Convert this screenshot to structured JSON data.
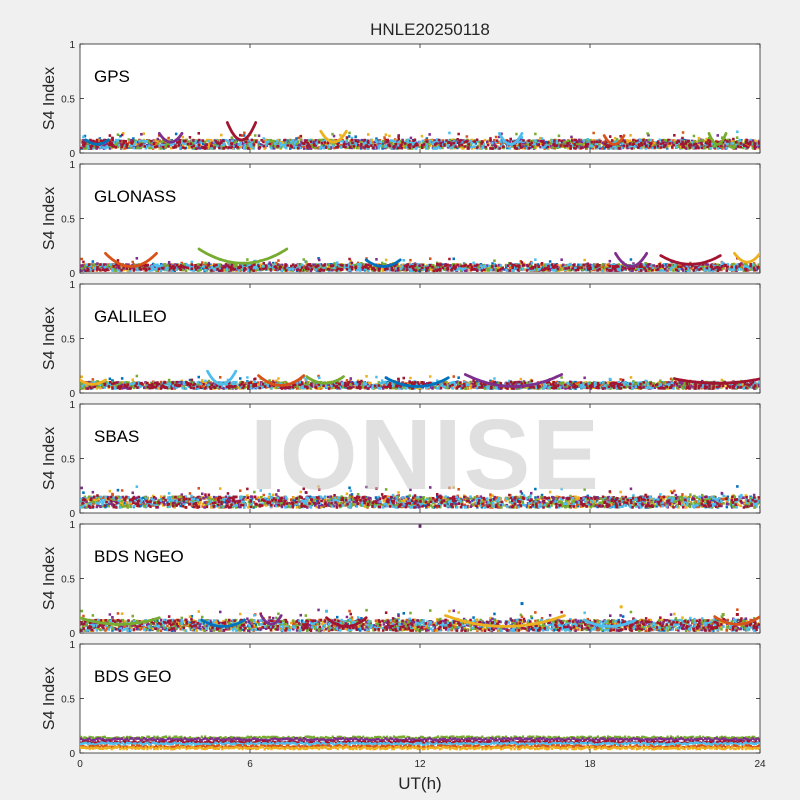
{
  "title": "HNLE20250118",
  "watermark": "IONISE",
  "chart_data": {
    "type": "scatter",
    "title": "HNLE20250118",
    "xlabel": "UT(h)",
    "ylabel": "S4 Index",
    "xlim": [
      0,
      24
    ],
    "ylim": [
      0,
      1
    ],
    "xticks": [
      0,
      6,
      12,
      18,
      24
    ],
    "yticks": [
      0,
      0.5,
      1
    ],
    "grid": false,
    "panels": [
      {
        "name": "GPS",
        "baseline": 0.08,
        "spread": 0.04,
        "arcs": [
          [
            0.2,
            1.0,
            0.12,
            0.08
          ],
          [
            2.8,
            3.6,
            0.18,
            0.1
          ],
          [
            5.2,
            6.2,
            0.28,
            0.12
          ],
          [
            8.5,
            9.4,
            0.2,
            0.1
          ],
          [
            14.8,
            15.6,
            0.18,
            0.08
          ],
          [
            18.5,
            19.2,
            0.16,
            0.08
          ],
          [
            22.2,
            22.8,
            0.18,
            0.08
          ]
        ]
      },
      {
        "name": "GLONASS",
        "baseline": 0.05,
        "spread": 0.03,
        "arcs": [
          [
            0.9,
            2.7,
            0.18,
            0.06
          ],
          [
            4.2,
            7.3,
            0.22,
            0.09
          ],
          [
            10.1,
            11.3,
            0.12,
            0.06
          ],
          [
            18.9,
            20.0,
            0.18,
            0.06
          ],
          [
            20.5,
            22.6,
            0.16,
            0.08
          ],
          [
            23.1,
            24.0,
            0.18,
            0.1
          ]
        ]
      },
      {
        "name": "GALILEO",
        "baseline": 0.07,
        "spread": 0.03,
        "arcs": [
          [
            0.0,
            0.9,
            0.12,
            0.08
          ],
          [
            4.5,
            5.5,
            0.2,
            0.08
          ],
          [
            6.3,
            7.9,
            0.16,
            0.07
          ],
          [
            8.0,
            9.3,
            0.15,
            0.09
          ],
          [
            10.8,
            13.0,
            0.14,
            0.06
          ],
          [
            13.6,
            17.0,
            0.17,
            0.06
          ],
          [
            21.0,
            24.0,
            0.13,
            0.09
          ]
        ]
      },
      {
        "name": "SBAS",
        "baseline": 0.1,
        "spread": 0.05,
        "arcs": []
      },
      {
        "name": "BDS NGEO",
        "baseline": 0.07,
        "spread": 0.05,
        "arcs": [
          [
            0.0,
            2.8,
            0.14,
            0.08
          ],
          [
            4.3,
            5.8,
            0.12,
            0.06
          ],
          [
            6.4,
            7.1,
            0.16,
            0.08
          ],
          [
            8.7,
            10.1,
            0.14,
            0.06
          ],
          [
            12.9,
            17.1,
            0.16,
            0.06
          ],
          [
            17.8,
            19.6,
            0.12,
            0.06
          ],
          [
            22.4,
            24.0,
            0.15,
            0.08
          ]
        ],
        "points": [
          [
            12.0,
            0.98
          ],
          [
            8.7,
            0.2
          ],
          [
            15.6,
            0.27
          ],
          [
            19.1,
            0.24
          ],
          [
            22.7,
            0.17
          ],
          [
            23.2,
            0.17
          ]
        ]
      },
      {
        "name": "BDS GEO",
        "baseline": 0.1,
        "spread": 0.015,
        "bands": [
          0.14,
          0.125,
          0.1,
          0.085,
          0.06,
          0.045
        ],
        "arcs": []
      }
    ],
    "series_colors": [
      "#0072BD",
      "#D95319",
      "#EDB120",
      "#7E2F8E",
      "#77AC30",
      "#4DBEEE",
      "#A2142F"
    ]
  }
}
